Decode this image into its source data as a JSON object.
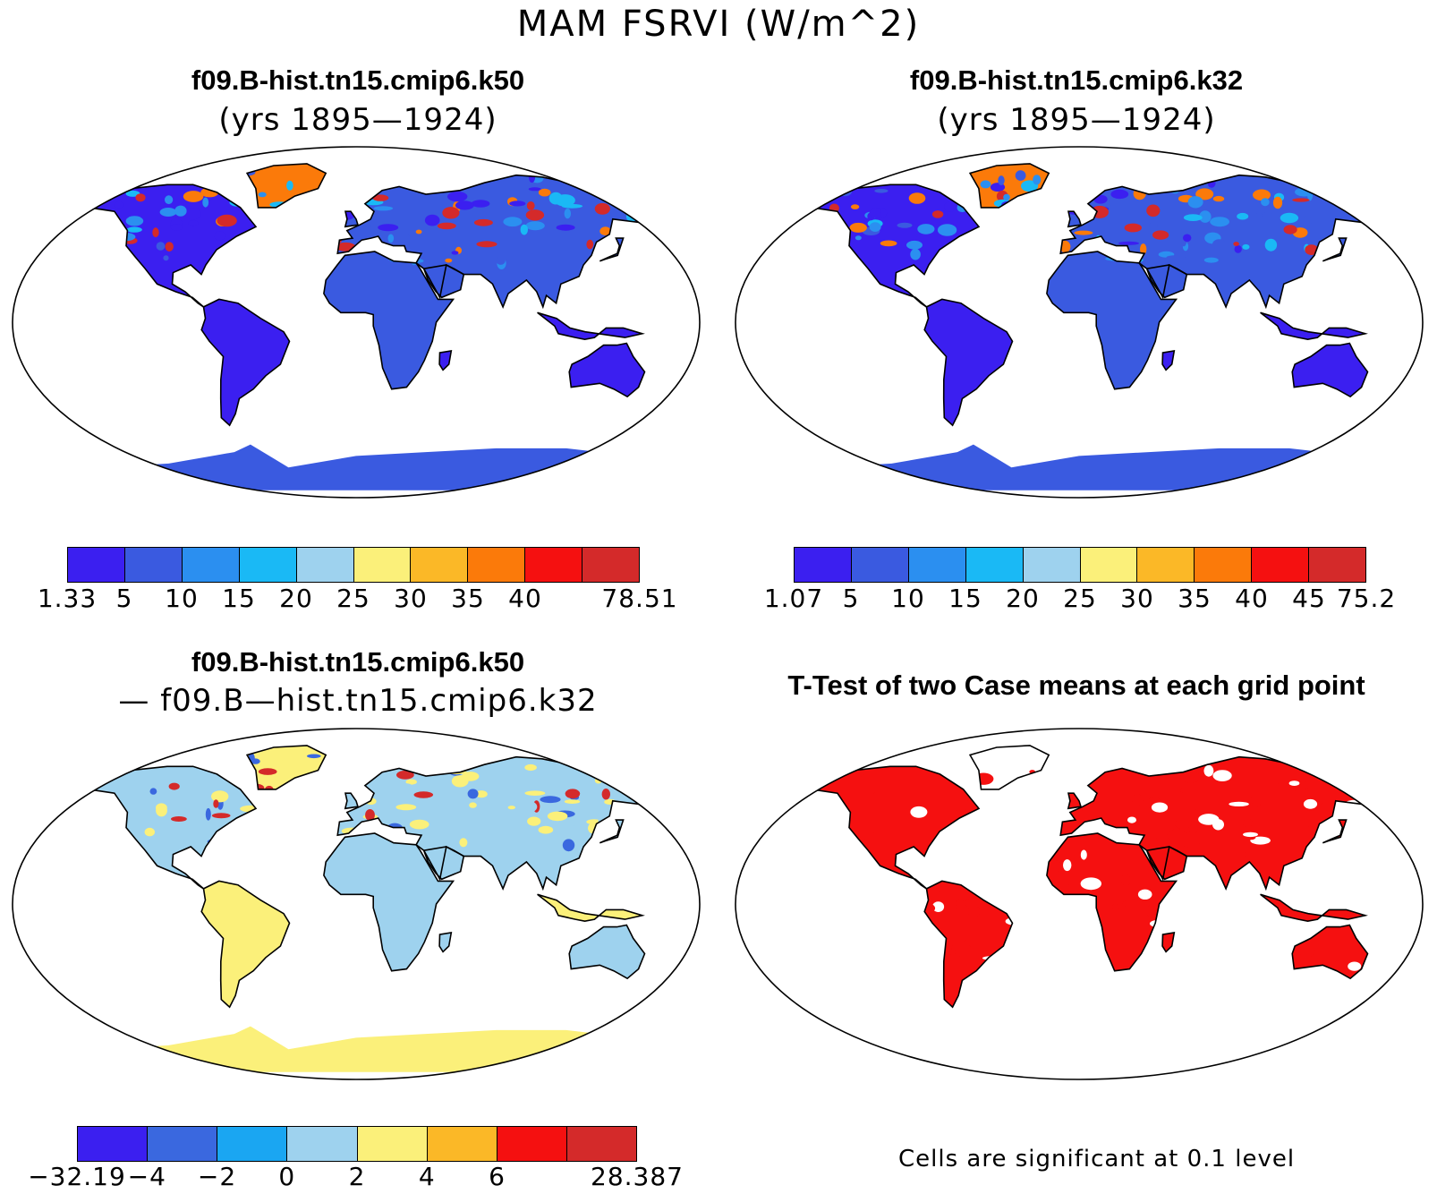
{
  "figure": {
    "title": "MAM FSRVI (W/m^2)"
  },
  "panels": [
    {
      "title": "f09.B-hist.tn15.cmip6.k50",
      "subtitle": "(yrs 1895—1924)",
      "colorbar": {
        "colors": [
          "#3b1ff0",
          "#3a5ae0",
          "#2b8ff0",
          "#1ab9f5",
          "#9ed2ee",
          "#fbf07a",
          "#fbb827",
          "#fb7a0a",
          "#f51010",
          "#d42a2a"
        ],
        "labels": [
          "1.33",
          "5",
          "10",
          "15",
          "20",
          "25",
          "30",
          "35",
          "40",
          "78.51"
        ]
      },
      "land_palette": [
        "#3b1ff0",
        "#3a5ae0",
        "#2b8ff0",
        "#1ab9f5",
        "#fb7a0a",
        "#d42a2a"
      ]
    },
    {
      "title": "f09.B-hist.tn15.cmip6.k32",
      "subtitle": "(yrs 1895—1924)",
      "colorbar": {
        "colors": [
          "#3b1ff0",
          "#3a5ae0",
          "#2b8ff0",
          "#1ab9f5",
          "#9ed2ee",
          "#fbf07a",
          "#fbb827",
          "#fb7a0a",
          "#f51010",
          "#d42a2a"
        ],
        "labels": [
          "1.07",
          "5",
          "10",
          "15",
          "20",
          "25",
          "30",
          "35",
          "40",
          "45",
          "75.2"
        ]
      },
      "land_palette": [
        "#3b1ff0",
        "#3a5ae0",
        "#2b8ff0",
        "#1ab9f5",
        "#fb7a0a",
        "#d42a2a"
      ]
    },
    {
      "title": "f09.B-hist.tn15.cmip6.k50",
      "subtitle": "— f09.B—hist.tn15.cmip6.k32",
      "colorbar": {
        "colors": [
          "#3b1ff0",
          "#3a68df",
          "#1aa6f2",
          "#9ed2ee",
          "#fbf07a",
          "#fbb827",
          "#f51010",
          "#d42a2a"
        ],
        "labels": [
          "−32.19",
          "−4",
          "−2",
          "0",
          "2",
          "4",
          "6",
          "28.387"
        ]
      },
      "land_palette": [
        "#9ed2ee",
        "#fbf07a",
        "#fbf07a",
        "#9ed2ee",
        "#3a68df",
        "#d42a2a"
      ]
    },
    {
      "title": "T-Test of two Case means at each grid point",
      "note": "Cells are significant at 0.1 level",
      "land_palette": [
        "#f51010",
        "#ffffff",
        "#f51010",
        "#f51010"
      ]
    }
  ]
}
